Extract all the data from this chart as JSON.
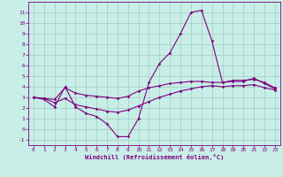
{
  "xlabel": "Windchill (Refroidissement éolien,°C)",
  "background_color": "#c8eee8",
  "line_color": "#800080",
  "grid_color": "#a0ccbe",
  "spine_color": "#800080",
  "xlim": [
    -0.5,
    23.5
  ],
  "ylim": [
    -1.5,
    12.0
  ],
  "yticks": [
    -1,
    0,
    1,
    2,
    3,
    4,
    5,
    6,
    7,
    8,
    9,
    10,
    11
  ],
  "xticks": [
    0,
    1,
    2,
    3,
    4,
    5,
    6,
    7,
    8,
    9,
    10,
    11,
    12,
    13,
    14,
    15,
    16,
    17,
    18,
    19,
    20,
    21,
    22,
    23
  ],
  "line1_x": [
    0,
    1,
    2,
    3,
    4,
    5,
    6,
    7,
    8,
    9,
    10,
    11,
    12,
    13,
    14,
    15,
    16,
    17,
    18,
    19,
    20,
    21,
    22,
    23
  ],
  "line1_y": [
    3.0,
    2.8,
    2.1,
    4.0,
    2.1,
    1.5,
    1.2,
    0.5,
    -0.7,
    -0.7,
    1.0,
    4.4,
    6.2,
    7.2,
    9.0,
    11.0,
    11.2,
    8.3,
    4.4,
    4.5,
    4.5,
    4.8,
    4.3,
    3.8
  ],
  "line2_x": [
    0,
    1,
    2,
    3,
    4,
    5,
    6,
    7,
    8,
    9,
    10,
    11,
    12,
    13,
    14,
    15,
    16,
    17,
    18,
    19,
    20,
    21,
    22,
    23
  ],
  "line2_y": [
    3.0,
    2.9,
    2.8,
    3.9,
    3.4,
    3.2,
    3.1,
    3.0,
    2.9,
    3.1,
    3.6,
    3.9,
    4.1,
    4.3,
    4.4,
    4.5,
    4.5,
    4.4,
    4.4,
    4.6,
    4.6,
    4.7,
    4.4,
    3.9
  ],
  "line3_x": [
    0,
    1,
    2,
    3,
    4,
    5,
    6,
    7,
    8,
    9,
    10,
    11,
    12,
    13,
    14,
    15,
    16,
    17,
    18,
    19,
    20,
    21,
    22,
    23
  ],
  "line3_y": [
    3.0,
    2.9,
    2.5,
    2.9,
    2.3,
    2.1,
    1.9,
    1.7,
    1.6,
    1.8,
    2.2,
    2.6,
    3.0,
    3.3,
    3.6,
    3.8,
    4.0,
    4.1,
    4.0,
    4.1,
    4.1,
    4.2,
    3.9,
    3.7
  ]
}
